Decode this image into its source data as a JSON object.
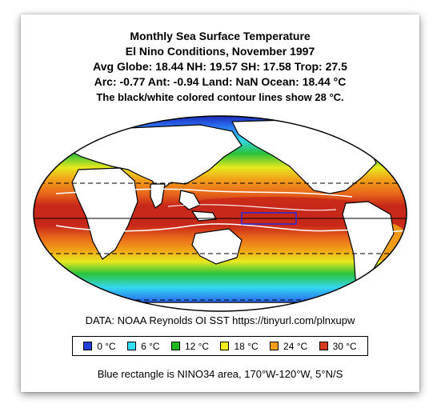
{
  "title": {
    "line1": "Monthly Sea Surface Temperature",
    "line2": "El Nino Conditions, November 1997",
    "line3": "Avg Globe: 18.44  NH: 19.57  SH: 17.58  Trop: 27.5",
    "line4": "Arc: -0.77  Ant: -0.94  Land: NaN Ocean: 18.44 °C",
    "line5": "The black/white colored contour lines show 28 °C."
  },
  "source": "DATA: NOAA Reynolds OI SST https://tinyurl.com/plnxupw",
  "legend": [
    {
      "label": "0 °C",
      "color": "#1f3fd6"
    },
    {
      "label": "6 °C",
      "color": "#33e0f0"
    },
    {
      "label": "12 °C",
      "color": "#1fb81f"
    },
    {
      "label": "18 °C",
      "color": "#f2ef1a"
    },
    {
      "label": "24 °C",
      "color": "#f2a019"
    },
    {
      "label": "30 °C",
      "color": "#d23a1a"
    }
  ],
  "note": "Blue rectangle is NINO34 area, 170°W-120°W, 5°N/S",
  "colors": {
    "frozen": "#1a1aa8",
    "cold": "#2a6cf0",
    "cool": "#33d8f0",
    "mid": "#2cc23a",
    "mild": "#e8e81e",
    "warm": "#f2a019",
    "hot": "#e8661a",
    "very_hot": "#c8281a",
    "nino_box": "#2a2ad8"
  }
}
